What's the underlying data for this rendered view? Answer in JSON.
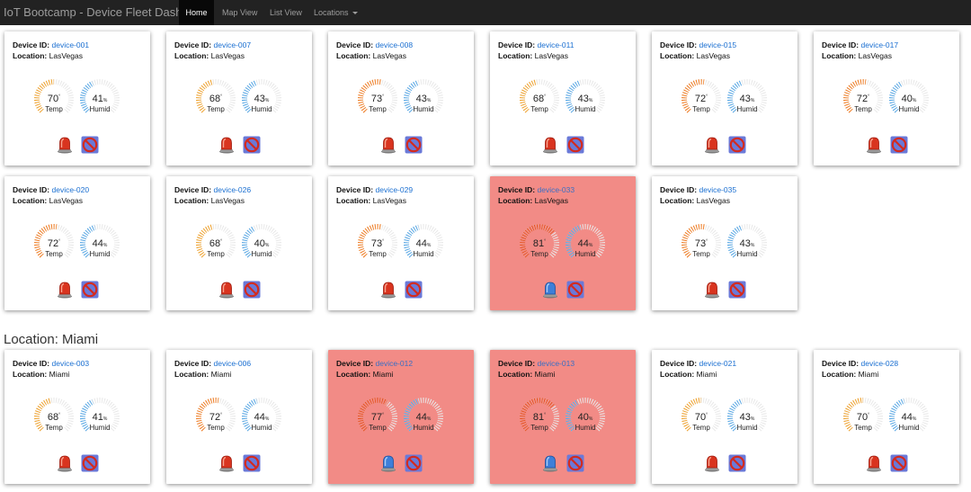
{
  "app": {
    "title": "IoT Bootcamp - Device Fleet Dashboard",
    "nav": [
      {
        "label": "Home",
        "active": true
      },
      {
        "label": "Map View",
        "active": false
      },
      {
        "label": "List View",
        "active": false
      },
      {
        "label": "Locations",
        "active": false,
        "dropdown": true
      }
    ]
  },
  "labels": {
    "device_id": "Device ID:",
    "location": "Location:",
    "temp": "Temp",
    "humid": "Humid",
    "temp_unit": "°",
    "humid_unit": "%"
  },
  "colors": {
    "nav_bg": "#222222",
    "card_alert_bg": "#f28b86",
    "temp_low": "#f0a431",
    "temp_mid": "#f07f27",
    "temp_high": "#e5501f",
    "humid": "#5aa9e6",
    "track": "#e8e8e8",
    "link": "#1a6fd1"
  },
  "locations": [
    {
      "heading": "",
      "devices": [
        {
          "id": "device-001",
          "location": "LasVegas",
          "temp": 70,
          "humid": 41,
          "alert": false,
          "alarm": "red-alarm-icon",
          "status": "blocked-icon"
        },
        {
          "id": "device-007",
          "location": "LasVegas",
          "temp": 68,
          "humid": 43,
          "alert": false,
          "alarm": "red-alarm-icon",
          "status": "blocked-icon"
        },
        {
          "id": "device-008",
          "location": "LasVegas",
          "temp": 73,
          "humid": 43,
          "alert": false,
          "alarm": "red-alarm-icon",
          "status": "blocked-icon"
        },
        {
          "id": "device-011",
          "location": "LasVegas",
          "temp": 68,
          "humid": 43,
          "alert": false,
          "alarm": "red-alarm-icon",
          "status": "blocked-icon"
        },
        {
          "id": "device-015",
          "location": "LasVegas",
          "temp": 72,
          "humid": 43,
          "alert": false,
          "alarm": "red-alarm-icon",
          "status": "blocked-icon"
        },
        {
          "id": "device-017",
          "location": "LasVegas",
          "temp": 72,
          "humid": 40,
          "alert": false,
          "alarm": "red-alarm-icon",
          "status": "blocked-icon"
        },
        {
          "id": "device-020",
          "location": "LasVegas",
          "temp": 72,
          "humid": 44,
          "alert": false,
          "alarm": "red-alarm-icon",
          "status": "blocked-icon"
        },
        {
          "id": "device-026",
          "location": "LasVegas",
          "temp": 68,
          "humid": 40,
          "alert": false,
          "alarm": "red-alarm-icon",
          "status": "blocked-icon"
        },
        {
          "id": "device-029",
          "location": "LasVegas",
          "temp": 73,
          "humid": 44,
          "alert": false,
          "alarm": "red-alarm-icon",
          "status": "blocked-icon"
        },
        {
          "id": "device-033",
          "location": "LasVegas",
          "temp": 81,
          "humid": 44,
          "alert": true,
          "alarm": "blue-alarm-icon",
          "status": "blocked-icon"
        },
        {
          "id": "device-035",
          "location": "LasVegas",
          "temp": 73,
          "humid": 43,
          "alert": false,
          "alarm": "red-alarm-icon",
          "status": "blocked-icon"
        }
      ]
    },
    {
      "heading": "Location: Miami",
      "devices": [
        {
          "id": "device-003",
          "location": "Miami",
          "temp": 68,
          "humid": 41,
          "alert": false,
          "alarm": "red-alarm-icon",
          "status": "blocked-icon"
        },
        {
          "id": "device-006",
          "location": "Miami",
          "temp": 72,
          "humid": 44,
          "alert": false,
          "alarm": "red-alarm-icon",
          "status": "blocked-icon"
        },
        {
          "id": "device-012",
          "location": "Miami",
          "temp": 77,
          "humid": 44,
          "alert": true,
          "alarm": "blue-alarm-icon",
          "status": "blocked-icon"
        },
        {
          "id": "device-013",
          "location": "Miami",
          "temp": 81,
          "humid": 40,
          "alert": true,
          "alarm": "blue-alarm-icon",
          "status": "blocked-icon"
        },
        {
          "id": "device-021",
          "location": "Miami",
          "temp": 70,
          "humid": 43,
          "alert": false,
          "alarm": "red-alarm-icon",
          "status": "blocked-icon"
        },
        {
          "id": "device-028",
          "location": "Miami",
          "temp": 70,
          "humid": 44,
          "alert": false,
          "alarm": "red-alarm-icon",
          "status": "blocked-icon"
        }
      ]
    }
  ]
}
